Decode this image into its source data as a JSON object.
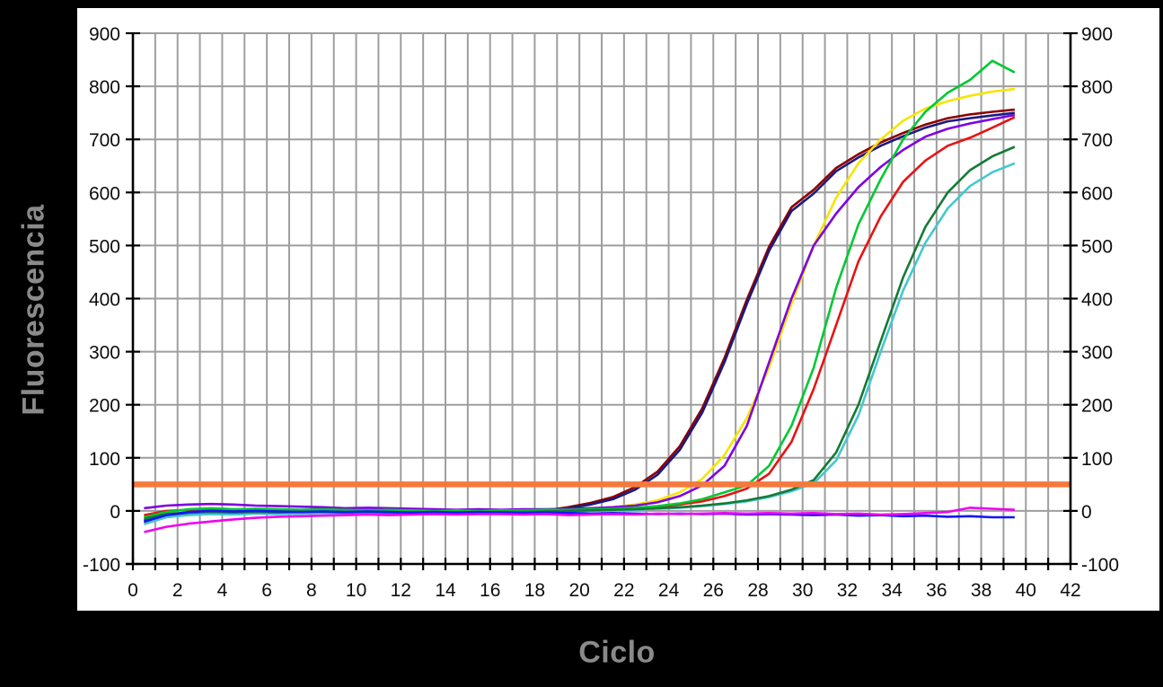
{
  "figure": {
    "ylabel": "Fluorescencia",
    "xlabel": "Ciclo"
  },
  "colors": {
    "background": "#000000",
    "panel": "#FFFFFF",
    "grid": "#9E9E9E",
    "axis": "#000000",
    "tick_text": "#0D0D0D",
    "axis_label_text": "#8A8A8A",
    "threshold": "#F4793D"
  },
  "chart_data": {
    "type": "line",
    "title": "",
    "xlabel": "Ciclo",
    "ylabel": "Fluorescencia",
    "xlim": [
      0,
      42
    ],
    "ylim": [
      -100,
      900
    ],
    "x_tick_labels": [
      0,
      2,
      4,
      6,
      8,
      10,
      12,
      14,
      16,
      18,
      20,
      22,
      24,
      26,
      28,
      30,
      32,
      34,
      36,
      38,
      40,
      42
    ],
    "x_minor_tick_step": 1,
    "y_ticks": [
      -100,
      0,
      100,
      200,
      300,
      400,
      500,
      600,
      700,
      800,
      900
    ],
    "grid": true,
    "x_grid_step": 1,
    "y_grid_step": 100,
    "legend": "none",
    "threshold_line": {
      "y": 50,
      "color": "#F4793D",
      "orientation": "horizontal"
    },
    "x": [
      0.5,
      1.5,
      2.5,
      3.5,
      4.5,
      5.5,
      6.5,
      7.5,
      8.5,
      9.5,
      10.5,
      11.5,
      12.5,
      13.5,
      14.5,
      15.5,
      16.5,
      17.5,
      18.5,
      19.5,
      20.5,
      21.5,
      22.5,
      23.5,
      24.5,
      25.5,
      26.5,
      27.5,
      28.5,
      29.5,
      30.5,
      31.5,
      32.5,
      33.5,
      34.5,
      35.5,
      36.5,
      37.5,
      38.5,
      39.5
    ],
    "series": [
      {
        "name": "dark-red-curve",
        "color": "#8B0000",
        "ct_approx": 23,
        "values": [
          -22,
          -10,
          -5,
          -3,
          -4,
          -3,
          -2,
          -3,
          -2,
          -3,
          -4,
          -3,
          -4,
          -5,
          -6,
          -5,
          -4,
          -3,
          1,
          7,
          15,
          26,
          45,
          74,
          122,
          193,
          288,
          398,
          498,
          572,
          605,
          646,
          672,
          694,
          712,
          728,
          740,
          747,
          752,
          756
        ]
      },
      {
        "name": "navy-curve",
        "color": "#1A1A80",
        "ct_approx": 23,
        "values": [
          -18,
          -8,
          -4,
          -2,
          -3,
          -2,
          -1,
          -2,
          -1,
          -2,
          -3,
          -2,
          -3,
          -4,
          -5,
          -4,
          -3,
          -2,
          0,
          5,
          12,
          22,
          40,
          68,
          115,
          185,
          280,
          390,
          490,
          565,
          598,
          640,
          666,
          688,
          706,
          722,
          734,
          740,
          745,
          750
        ]
      },
      {
        "name": "yellow-curve",
        "color": "#F7E400",
        "ct_approx": 25.2,
        "values": [
          -10,
          -4,
          0,
          2,
          0,
          1,
          0,
          -1,
          0,
          -1,
          -2,
          -1,
          -2,
          -3,
          -2,
          -2,
          -1,
          0,
          1,
          2,
          4,
          7,
          12,
          20,
          35,
          60,
          105,
          175,
          270,
          390,
          500,
          590,
          655,
          700,
          735,
          758,
          772,
          782,
          790,
          795
        ]
      },
      {
        "name": "purple-curve",
        "color": "#7F00E0",
        "ct_approx": 25.6,
        "values": [
          5,
          10,
          12,
          13,
          12,
          10,
          9,
          8,
          7,
          5,
          6,
          5,
          4,
          3,
          2,
          3,
          2,
          3,
          3,
          4,
          5,
          7,
          10,
          16,
          28,
          48,
          85,
          160,
          280,
          400,
          500,
          560,
          610,
          648,
          680,
          705,
          720,
          730,
          738,
          746
        ]
      },
      {
        "name": "red-curve",
        "color": "#E81212",
        "ct_approx": 28.2,
        "values": [
          -8,
          0,
          2,
          1,
          2,
          1,
          0,
          1,
          0,
          -1,
          0,
          -1,
          -2,
          -1,
          -2,
          -1,
          -1,
          0,
          0,
          1,
          2,
          3,
          5,
          8,
          12,
          18,
          28,
          42,
          70,
          130,
          230,
          350,
          470,
          555,
          620,
          660,
          688,
          703,
          722,
          742
        ]
      },
      {
        "name": "green-curve",
        "color": "#00C832",
        "ct_approx": 27.6,
        "values": [
          -12,
          -2,
          3,
          5,
          3,
          4,
          3,
          2,
          3,
          2,
          1,
          2,
          1,
          0,
          1,
          0,
          1,
          1,
          2,
          2,
          3,
          4,
          6,
          9,
          14,
          22,
          35,
          48,
          85,
          160,
          270,
          420,
          540,
          625,
          700,
          752,
          788,
          812,
          848,
          826
        ]
      },
      {
        "name": "cyan-curve",
        "color": "#45C7CE",
        "ct_approx": 30.4,
        "values": [
          -25,
          -12,
          -8,
          -6,
          -7,
          -5,
          -6,
          -5,
          -4,
          -5,
          -4,
          -5,
          -4,
          -5,
          -4,
          -4,
          -3,
          -3,
          -2,
          -1,
          0,
          1,
          2,
          4,
          6,
          9,
          13,
          18,
          26,
          37,
          52,
          95,
          180,
          300,
          415,
          505,
          570,
          612,
          638,
          655
        ]
      },
      {
        "name": "dark-green-curve",
        "color": "#157A36",
        "ct_approx": 30.2,
        "values": [
          -15,
          -6,
          -3,
          -2,
          -3,
          -2,
          -3,
          -2,
          -2,
          -3,
          -2,
          -3,
          -3,
          -4,
          -3,
          -3,
          -2,
          -2,
          -1,
          0,
          1,
          2,
          3,
          5,
          7,
          10,
          14,
          20,
          28,
          40,
          58,
          110,
          200,
          320,
          440,
          535,
          600,
          642,
          668,
          686
        ]
      },
      {
        "name": "blue-flat-line",
        "color": "#1414FF",
        "ct_approx": null,
        "values": [
          -20,
          -8,
          -2,
          0,
          -1,
          0,
          -1,
          -2,
          -1,
          -2,
          -1,
          -2,
          -3,
          -2,
          -3,
          -2,
          -3,
          -4,
          -3,
          -4,
          -5,
          -4,
          -5,
          -6,
          -5,
          -6,
          -5,
          -7,
          -6,
          -7,
          -8,
          -7,
          -9,
          -8,
          -10,
          -9,
          -11,
          -10,
          -12,
          -12
        ]
      },
      {
        "name": "magenta-flat-line",
        "color": "#F000F0",
        "ct_approx": null,
        "values": [
          -40,
          -30,
          -24,
          -20,
          -16,
          -13,
          -11,
          -10,
          -9,
          -8,
          -7,
          -8,
          -7,
          -6,
          -7,
          -6,
          -6,
          -7,
          -6,
          -8,
          -7,
          -6,
          -7,
          -5,
          -6,
          -5,
          -4,
          -5,
          -4,
          -5,
          -4,
          -6,
          -5,
          -7,
          -6,
          -4,
          -2,
          6,
          4,
          2
        ]
      }
    ]
  }
}
